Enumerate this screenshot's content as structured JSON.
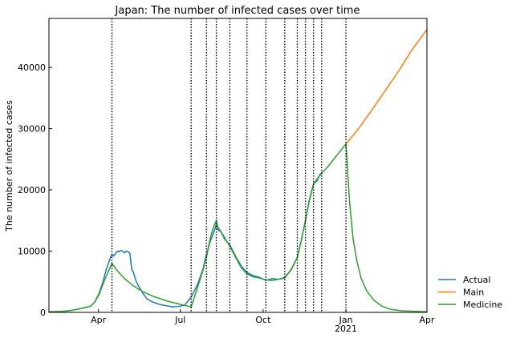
{
  "chart_data": {
    "type": "line",
    "title": "Japan: The number of infected cases over time",
    "xlabel": "",
    "ylabel": "The number of infected cases",
    "xlim": [
      "2020-02-06",
      "2021-04-01"
    ],
    "ylim": [
      0,
      48000
    ],
    "x_ticks": [
      {
        "date": "2020-04-01",
        "label": "Apr",
        "sublabel": ""
      },
      {
        "date": "2020-07-01",
        "label": "Jul",
        "sublabel": ""
      },
      {
        "date": "2020-10-01",
        "label": "Oct",
        "sublabel": ""
      },
      {
        "date": "2021-01-01",
        "label": "Jan",
        "sublabel": "2021"
      },
      {
        "date": "2021-04-01",
        "label": "Apr",
        "sublabel": ""
      }
    ],
    "y_ticks": [
      {
        "value": 0,
        "label": "0"
      },
      {
        "value": 10000,
        "label": "10000"
      },
      {
        "value": 20000,
        "label": "20000"
      },
      {
        "value": 30000,
        "label": "30000"
      },
      {
        "value": 40000,
        "label": "40000"
      }
    ],
    "change_dates": [
      "2020-04-16",
      "2020-07-13",
      "2020-07-30",
      "2020-08-10",
      "2020-08-25",
      "2020-09-13",
      "2020-10-04",
      "2020-10-25",
      "2020-11-08",
      "2020-11-17",
      "2020-11-26",
      "2020-12-05",
      "2021-01-01"
    ],
    "legend_position": "right",
    "series": [
      {
        "name": "Actual",
        "color": "#1f77b4",
        "points": [
          [
            "2020-02-06",
            100
          ],
          [
            "2020-02-20",
            150
          ],
          [
            "2020-03-01",
            300
          ],
          [
            "2020-03-15",
            700
          ],
          [
            "2020-03-23",
            1000
          ],
          [
            "2020-03-28",
            1700
          ],
          [
            "2020-04-02",
            3200
          ],
          [
            "2020-04-06",
            5000
          ],
          [
            "2020-04-10",
            7200
          ],
          [
            "2020-04-14",
            8800
          ],
          [
            "2020-04-16",
            9500
          ],
          [
            "2020-04-18",
            9200
          ],
          [
            "2020-04-20",
            9600
          ],
          [
            "2020-04-22",
            10000
          ],
          [
            "2020-04-24",
            9900
          ],
          [
            "2020-04-26",
            10100
          ],
          [
            "2020-04-28",
            10000
          ],
          [
            "2020-04-30",
            9700
          ],
          [
            "2020-05-02",
            10000
          ],
          [
            "2020-05-04",
            9900
          ],
          [
            "2020-05-06",
            9600
          ],
          [
            "2020-05-08",
            7000
          ],
          [
            "2020-05-10",
            6500
          ],
          [
            "2020-05-13",
            5000
          ],
          [
            "2020-05-16",
            4200
          ],
          [
            "2020-05-20",
            3200
          ],
          [
            "2020-05-25",
            2200
          ],
          [
            "2020-05-31",
            1700
          ],
          [
            "2020-06-08",
            1300
          ],
          [
            "2020-06-15",
            1100
          ],
          [
            "2020-06-22",
            900
          ],
          [
            "2020-06-29",
            950
          ],
          [
            "2020-07-06",
            1200
          ],
          [
            "2020-07-13",
            2500
          ],
          [
            "2020-07-20",
            4500
          ],
          [
            "2020-07-26",
            7000
          ],
          [
            "2020-07-30",
            9500
          ],
          [
            "2020-08-03",
            11500
          ],
          [
            "2020-08-07",
            13000
          ],
          [
            "2020-08-10",
            14400
          ],
          [
            "2020-08-12",
            13400
          ],
          [
            "2020-08-15",
            13200
          ],
          [
            "2020-08-19",
            12000
          ],
          [
            "2020-08-25",
            11000
          ],
          [
            "2020-09-01",
            9000
          ],
          [
            "2020-09-07",
            7500
          ],
          [
            "2020-09-13",
            6500
          ],
          [
            "2020-09-20",
            6000
          ],
          [
            "2020-09-27",
            5700
          ],
          [
            "2020-10-04",
            5200
          ],
          [
            "2020-10-11",
            5500
          ],
          [
            "2020-10-18",
            5400
          ],
          [
            "2020-10-25",
            5600
          ],
          [
            "2020-11-01",
            7000
          ],
          [
            "2020-11-08",
            9000
          ],
          [
            "2020-11-12",
            11500
          ],
          [
            "2020-11-17",
            15000
          ],
          [
            "2020-11-21",
            18000
          ],
          [
            "2020-11-26",
            21000
          ],
          [
            "2020-11-30",
            21500
          ],
          [
            "2020-12-03",
            22500
          ],
          [
            "2020-12-05",
            22800
          ]
        ]
      },
      {
        "name": "Main",
        "color": "#ff7f0e",
        "points": [
          [
            "2021-01-01",
            27500
          ],
          [
            "2021-01-15",
            30000
          ],
          [
            "2021-02-01",
            33500
          ],
          [
            "2021-02-15",
            36500
          ],
          [
            "2021-03-01",
            39500
          ],
          [
            "2021-03-15",
            42800
          ],
          [
            "2021-04-01",
            46200
          ]
        ]
      },
      {
        "name": "Medicine",
        "color": "#2ca02c",
        "points": [
          [
            "2020-02-06",
            100
          ],
          [
            "2020-02-20",
            150
          ],
          [
            "2020-03-01",
            300
          ],
          [
            "2020-03-15",
            700
          ],
          [
            "2020-03-23",
            1000
          ],
          [
            "2020-03-28",
            1700
          ],
          [
            "2020-04-02",
            3000
          ],
          [
            "2020-04-07",
            5000
          ],
          [
            "2020-04-12",
            6700
          ],
          [
            "2020-04-16",
            8000
          ],
          [
            "2020-04-22",
            6800
          ],
          [
            "2020-04-30",
            5500
          ],
          [
            "2020-05-10",
            4300
          ],
          [
            "2020-05-20",
            3400
          ],
          [
            "2020-06-01",
            2600
          ],
          [
            "2020-06-15",
            1900
          ],
          [
            "2020-07-01",
            1300
          ],
          [
            "2020-07-13",
            900
          ],
          [
            "2020-07-20",
            4000
          ],
          [
            "2020-07-26",
            6800
          ],
          [
            "2020-07-30",
            9000
          ],
          [
            "2020-08-03",
            12000
          ],
          [
            "2020-08-07",
            14000
          ],
          [
            "2020-08-10",
            15000
          ],
          [
            "2020-08-12",
            13800
          ],
          [
            "2020-08-16",
            13000
          ],
          [
            "2020-08-20",
            12000
          ],
          [
            "2020-08-25",
            10800
          ],
          [
            "2020-09-01",
            8800
          ],
          [
            "2020-09-07",
            7200
          ],
          [
            "2020-09-13",
            6300
          ],
          [
            "2020-09-20",
            5800
          ],
          [
            "2020-09-27",
            5600
          ],
          [
            "2020-10-04",
            5300
          ],
          [
            "2020-10-11",
            5200
          ],
          [
            "2020-10-18",
            5400
          ],
          [
            "2020-10-25",
            5700
          ],
          [
            "2020-11-01",
            6900
          ],
          [
            "2020-11-08",
            9000
          ],
          [
            "2020-11-12",
            11500
          ],
          [
            "2020-11-17",
            15000
          ],
          [
            "2020-11-21",
            18200
          ],
          [
            "2020-11-26",
            21000
          ],
          [
            "2020-11-30",
            21800
          ],
          [
            "2020-12-05",
            22700
          ],
          [
            "2020-12-12",
            23800
          ],
          [
            "2020-12-20",
            25300
          ],
          [
            "2021-01-01",
            27500
          ],
          [
            "2021-01-05",
            18000
          ],
          [
            "2021-01-09",
            12000
          ],
          [
            "2021-01-13",
            8500
          ],
          [
            "2021-01-18",
            5500
          ],
          [
            "2021-01-24",
            3500
          ],
          [
            "2021-02-01",
            2000
          ],
          [
            "2021-02-10",
            1000
          ],
          [
            "2021-02-20",
            500
          ],
          [
            "2021-03-05",
            250
          ],
          [
            "2021-04-01",
            100
          ]
        ]
      }
    ]
  }
}
